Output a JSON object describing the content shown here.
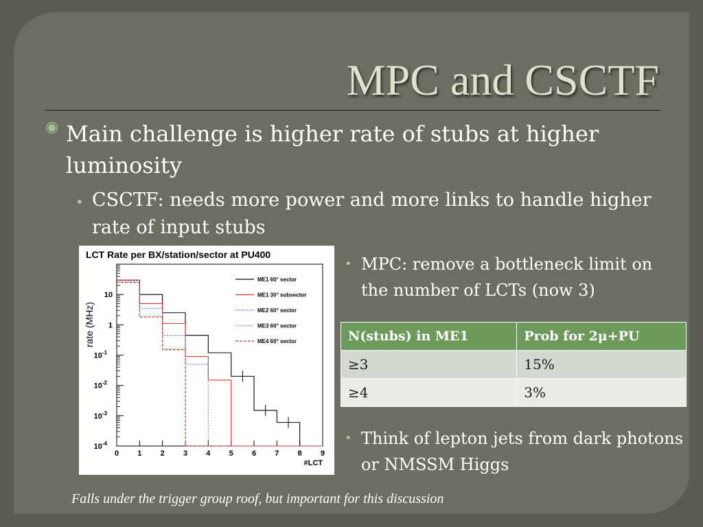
{
  "slide": {
    "title": "MPC and CSCTF",
    "bullet_main": "Main challenge is higher rate of stubs at higher luminosity",
    "bullet_csctf": "CSCTF:  needs more power and more links to handle higher rate of input stubs",
    "bullet_mpc": "MPC: remove a bottleneck limit on the number of LCTs (now 3)",
    "bullet_think": "Think of lepton jets from dark photons or NMSSM Higgs",
    "footer": "Falls under the trigger group roof, but important for this discussion",
    "bullet_glyph": "◉",
    "sub_glyph": "•"
  },
  "table": {
    "headers": [
      "N(stubs) in ME1",
      "Prob for 2μ+PU"
    ],
    "rows": [
      [
        "≥3",
        "15%"
      ],
      [
        "≥4",
        "3%"
      ]
    ]
  },
  "colors": {
    "background": "#595d50",
    "card": "#6b6f62",
    "title": "#dde3cf",
    "table_header": "#6b9a5a"
  },
  "chart_data": {
    "type": "line",
    "title": "LCT Rate per BX/station/sector at PU400",
    "xlabel": "#LCT",
    "ylabel": "rate (MHz)",
    "xlim": [
      0,
      9
    ],
    "ylim": [
      0.0001,
      100
    ],
    "log_y": true,
    "x_ticks": [
      "0",
      "1",
      "2",
      "3",
      "4",
      "5",
      "6",
      "7",
      "8",
      "9"
    ],
    "y_ticks": [
      {
        "value": 10,
        "label": "10"
      },
      {
        "value": 1,
        "label": "1"
      },
      {
        "value": 0.1,
        "label": "10",
        "exp": "-1"
      },
      {
        "value": 0.01,
        "label": "10",
        "exp": "-2"
      },
      {
        "value": 0.001,
        "label": "10",
        "exp": "-3"
      },
      {
        "value": 0.0001,
        "label": "10",
        "exp": "-4"
      }
    ],
    "legend_position": "top-right",
    "series": [
      {
        "name": "ME1 60° sector",
        "color": "#000000",
        "dash": "",
        "values": [
          30,
          10,
          2.5,
          0.45,
          0.12,
          0.02,
          0.0015,
          0.0006,
          0.0001
        ]
      },
      {
        "name": "ME1 30° subsector",
        "color": "#e03030",
        "dash": "",
        "values": [
          30,
          5,
          1.1,
          0.09,
          0.015,
          0.0001,
          0.0001,
          0.0001,
          0.0001
        ]
      },
      {
        "name": "ME2 60° sector",
        "color": "#5a6ed8",
        "dash": "2,2",
        "values": [
          28,
          3.5,
          0.45,
          0.05,
          0.0001,
          0.0001,
          0.0001,
          0.0001,
          0.0001
        ]
      },
      {
        "name": "ME3 60° sector",
        "color": "#2aa02a",
        "dash": "1,2",
        "values": [
          25,
          2.0,
          0.16,
          0.0001,
          0.0001,
          0.0001,
          0.0001,
          0.0001,
          0.0001
        ]
      },
      {
        "name": "ME4 60° sector",
        "color": "#c03030",
        "dash": "4,2",
        "values": [
          25,
          1.8,
          0.15,
          0.0001,
          0.0001,
          0.0001,
          0.0001,
          0.0001,
          0.0001
        ]
      }
    ]
  }
}
